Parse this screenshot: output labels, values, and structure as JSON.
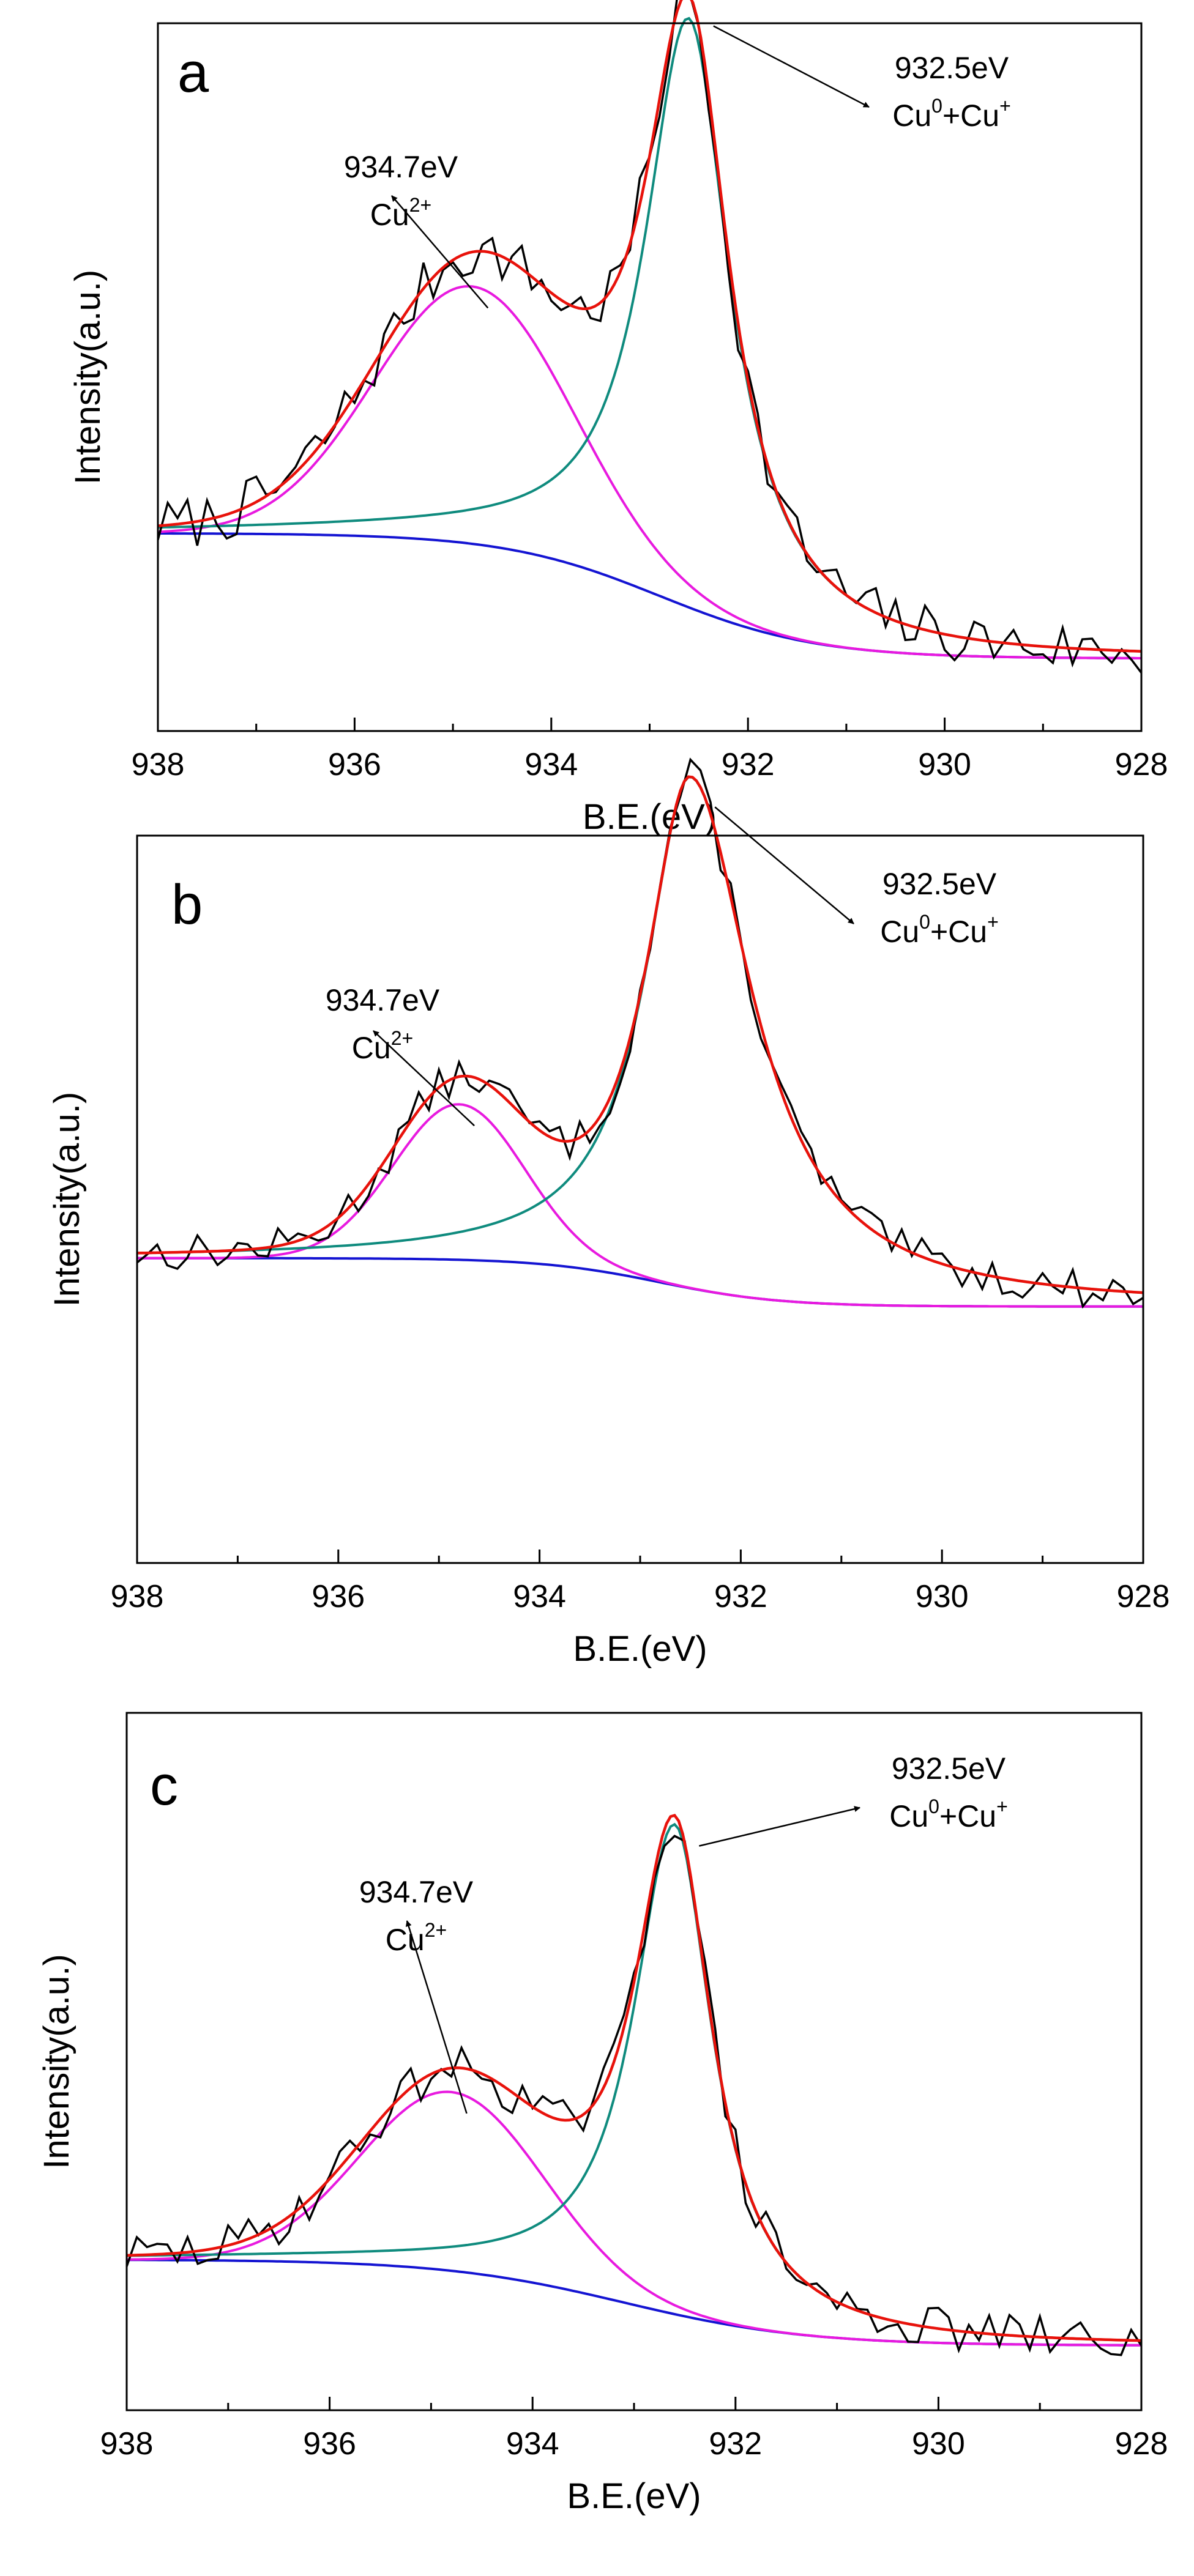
{
  "chart_data": [
    {
      "type": "line",
      "panel_label": "a",
      "xlabel": "B.E.(eV)",
      "ylabel": "Intensity(a.u.)",
      "xlim": [
        938,
        928
      ],
      "ylim": [
        0,
        1.0
      ],
      "x_ticks": [
        "938",
        "936",
        "934",
        "932",
        "930",
        "928"
      ],
      "annotations": [
        {
          "energy": "932.5eV",
          "species": "Cu",
          "sup1": "0",
          "mid": "+Cu",
          "sup2": "+",
          "peak": "cu0cu1"
        },
        {
          "energy": "934.7eV",
          "species": "Cu",
          "sup1": "2+",
          "mid": "",
          "sup2": "",
          "peak": "cu2"
        }
      ],
      "params": {
        "bg_left": 0.265,
        "bg_right": 0.08,
        "bg_center": 932.9,
        "bg_width": 0.8,
        "cu2": {
          "center": 934.8,
          "amp": 0.38,
          "sigma": 1.0
        },
        "cu0cu1": {
          "center": 932.6,
          "amp": 0.87,
          "wl": 0.55,
          "wr": 0.5
        },
        "raw_noise": 0.018,
        "raw_seed": 7
      },
      "series": [
        {
          "name": "Raw data",
          "color": "#000000"
        },
        {
          "name": "Envelope fit",
          "color": "#e8120b"
        },
        {
          "name": "Cu2+ component",
          "color": "#e81adf"
        },
        {
          "name": "Cu0+Cu+ component",
          "color": "#0f8b7e"
        },
        {
          "name": "Background",
          "color": "#1414d2"
        }
      ]
    },
    {
      "type": "line",
      "panel_label": "b",
      "xlabel": "B.E.(eV)",
      "ylabel": "Intensity(a.u.)",
      "xlim": [
        938,
        928
      ],
      "ylim": [
        0,
        1.0
      ],
      "x_ticks": [
        "938",
        "936",
        "934",
        "932",
        "930",
        "928"
      ],
      "annotations": [
        {
          "energy": "932.5eV",
          "species": "Cu",
          "sup1": "0",
          "mid": "+Cu",
          "sup2": "+",
          "peak": "cu0cu1"
        },
        {
          "energy": "934.7eV",
          "species": "Cu",
          "sup1": "2+",
          "mid": "",
          "sup2": "",
          "peak": "cu2"
        }
      ],
      "params": {
        "bg_left": 0.41,
        "bg_right": 0.34,
        "bg_center": 932.8,
        "bg_width": 0.6,
        "cu2": {
          "center": 934.8,
          "amp": 0.225,
          "sigma": 0.65
        },
        "cu0cu1": {
          "center": 932.5,
          "amp": 0.74,
          "wl": 0.55,
          "wr": 0.75
        },
        "raw_noise": 0.012,
        "raw_seed": 13
      },
      "series": [
        {
          "name": "Raw data",
          "color": "#000000"
        },
        {
          "name": "Envelope fit",
          "color": "#e8120b"
        },
        {
          "name": "Cu2+ component",
          "color": "#e81adf"
        },
        {
          "name": "Cu0+Cu+ component",
          "color": "#0f8b7e"
        },
        {
          "name": "Background",
          "color": "#1414d2"
        }
      ]
    },
    {
      "type": "line",
      "panel_label": "c",
      "xlabel": "B.E.(eV)",
      "ylabel": "Intensity(a.u.)",
      "xlim": [
        938,
        928
      ],
      "ylim": [
        0,
        1.0
      ],
      "x_ticks": [
        "938",
        "936",
        "934",
        "932",
        "930",
        "928"
      ],
      "annotations": [
        {
          "energy": "932.5eV",
          "species": "Cu",
          "sup1": "0",
          "mid": "+Cu",
          "sup2": "+",
          "peak": "cu0cu1"
        },
        {
          "energy": "934.7eV",
          "species": "Cu",
          "sup1": "2+",
          "mid": "",
          "sup2": "",
          "peak": "cu2"
        }
      ],
      "params": {
        "bg_left": 0.2,
        "bg_right": 0.07,
        "bg_center": 933.1,
        "bg_width": 0.9,
        "cu2": {
          "center": 934.8,
          "amp": 0.27,
          "sigma": 0.9
        },
        "cu0cu1": {
          "center": 932.6,
          "amp": 0.74,
          "wl": 0.5,
          "wr": 0.45
        },
        "raw_noise": 0.015,
        "raw_seed": 29
      },
      "series": [
        {
          "name": "Raw data",
          "color": "#000000"
        },
        {
          "name": "Envelope fit",
          "color": "#e8120b"
        },
        {
          "name": "Cu2+ component",
          "color": "#e81adf"
        },
        {
          "name": "Cu0+Cu+ component",
          "color": "#0f8b7e"
        },
        {
          "name": "Background",
          "color": "#1414d2"
        }
      ]
    }
  ]
}
